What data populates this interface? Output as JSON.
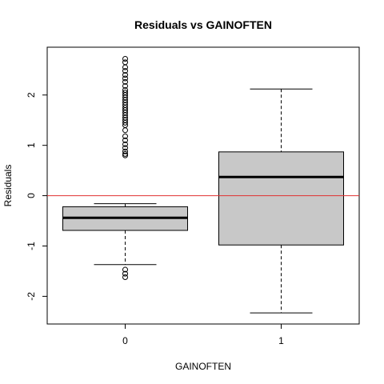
{
  "chart_data": {
    "type": "boxplot",
    "title": "Residuals vs GAINOFTEN",
    "xlabel": "GAINOFTEN",
    "ylabel": "Residuals",
    "categories": [
      "0",
      "1"
    ],
    "ylim": [
      -2.55,
      2.95
    ],
    "yticks": [
      -2,
      -1,
      0,
      1,
      2
    ],
    "ytick_labels": [
      "-2",
      "-1",
      "0",
      "1",
      "2"
    ],
    "reference_line": {
      "y": 0,
      "color": "#e03030"
    },
    "box_fill": "#c8c8c8",
    "boxes": [
      {
        "category": "0",
        "whisker_low": -1.37,
        "q1": -0.69,
        "median": -0.44,
        "q3": -0.22,
        "whisker_high": -0.16,
        "outliers": [
          2.72,
          2.65,
          2.55,
          2.48,
          2.4,
          2.33,
          2.26,
          2.18,
          2.1,
          2.05,
          2.0,
          1.95,
          1.9,
          1.85,
          1.8,
          1.75,
          1.7,
          1.65,
          1.6,
          1.55,
          1.5,
          1.45,
          1.4,
          1.3,
          1.18,
          1.1,
          1.02,
          0.95,
          0.88,
          0.83,
          0.8,
          -1.47,
          -1.55,
          -1.62
        ]
      },
      {
        "category": "1",
        "whisker_low": -2.33,
        "q1": -0.98,
        "median": 0.37,
        "q3": 0.87,
        "whisker_high": 2.12,
        "outliers": []
      }
    ]
  }
}
